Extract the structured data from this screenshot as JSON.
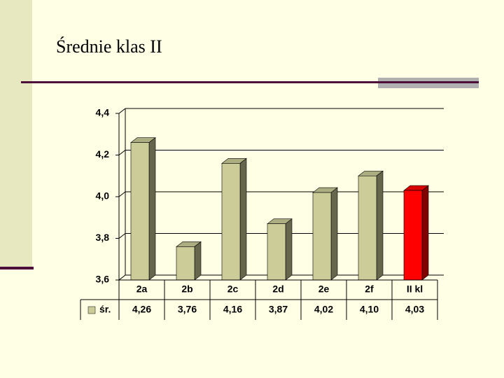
{
  "chart_data": {
    "type": "bar3d",
    "title": "Średnie klas II",
    "categories": [
      "2a",
      "2b",
      "2c",
      "2d",
      "2e",
      "2f",
      "II kl"
    ],
    "series": [
      {
        "name": "śr.",
        "color": "#cccc99",
        "colors": [
          "#cccc99",
          "#cccc99",
          "#cccc99",
          "#cccc99",
          "#cccc99",
          "#cccc99",
          "#ff0000"
        ],
        "values": [
          4.26,
          3.76,
          4.16,
          3.87,
          4.02,
          4.1,
          4.03
        ],
        "value_labels": [
          "4,26",
          "3,76",
          "4,16",
          "3,87",
          "4,02",
          "4,10",
          "4,03"
        ]
      }
    ],
    "ylim": [
      3.6,
      4.4
    ],
    "yticks": [
      {
        "value": 3.6,
        "label": "3,6"
      },
      {
        "value": 3.8,
        "label": "3,8"
      },
      {
        "value": 4.0,
        "label": "4,0"
      },
      {
        "value": 4.2,
        "label": "4,2"
      },
      {
        "value": 4.4,
        "label": "4,4"
      }
    ],
    "grid": true,
    "data_table": true
  }
}
